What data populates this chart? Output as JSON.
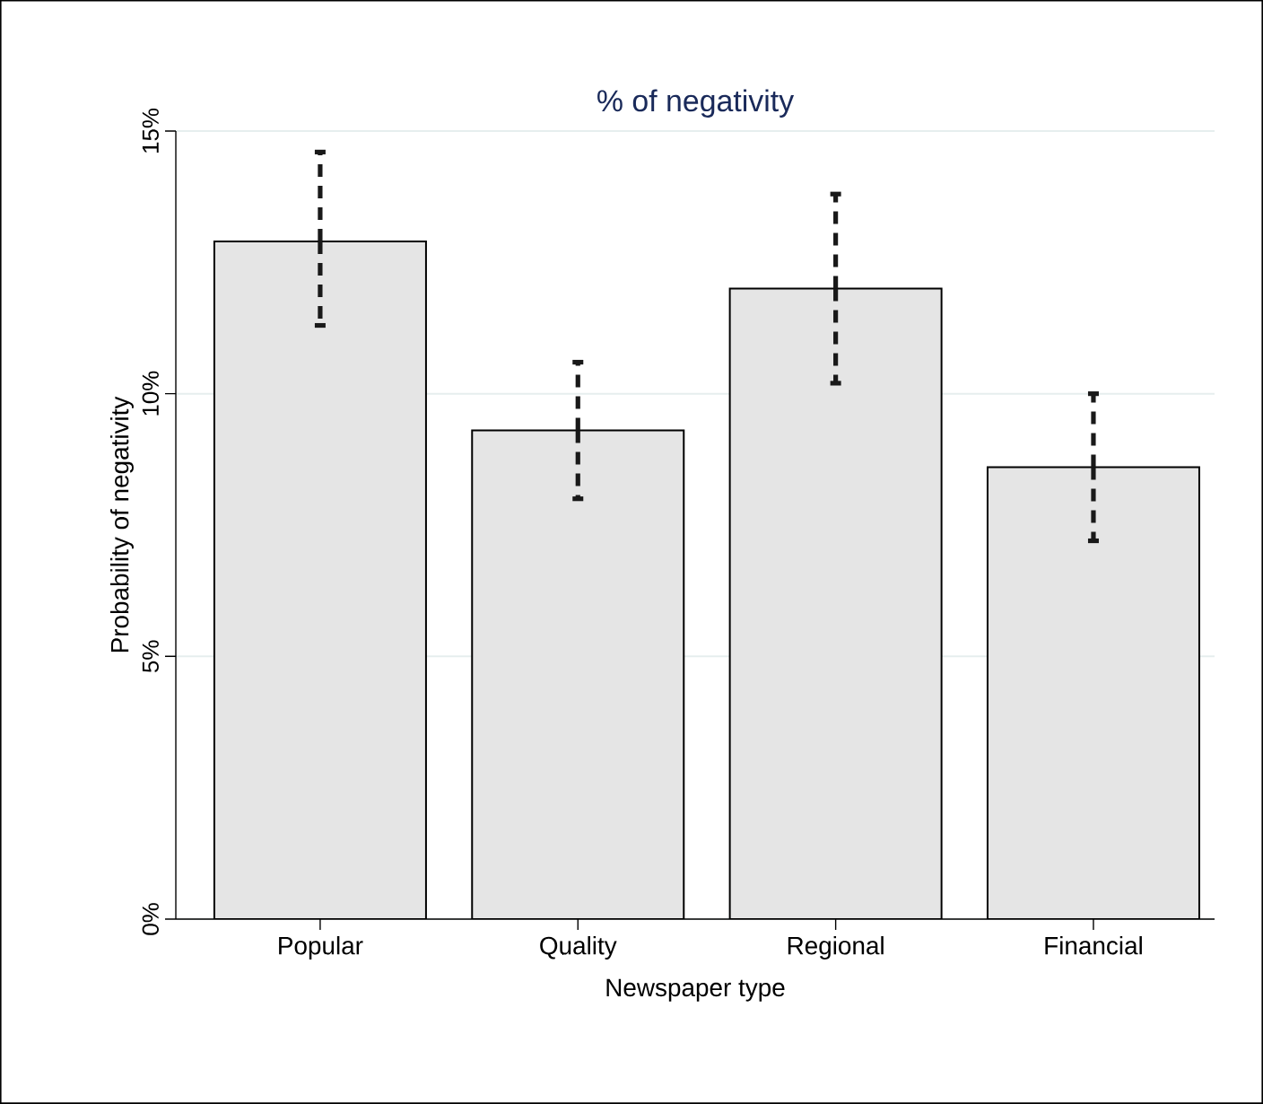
{
  "chart_data": {
    "type": "bar",
    "title": "%  of negativity",
    "xlabel": "Newspaper type",
    "ylabel": "Probability of negativity",
    "categories": [
      "Popular",
      "Quality",
      "Regional",
      "Financial"
    ],
    "values": [
      12.9,
      9.3,
      12.0,
      8.6
    ],
    "errors": [
      [
        11.3,
        14.6
      ],
      [
        8.0,
        10.6
      ],
      [
        10.2,
        13.8
      ],
      [
        7.2,
        10.0
      ]
    ],
    "color": "#e5e5e5",
    "ylim": [
      0,
      15
    ],
    "yticks": [
      {
        "value": 0,
        "label": "0%"
      },
      {
        "value": 5,
        "label": "5%"
      },
      {
        "value": 10,
        "label": "10%"
      },
      {
        "value": 15,
        "label": "15%"
      }
    ],
    "grid": "y"
  }
}
